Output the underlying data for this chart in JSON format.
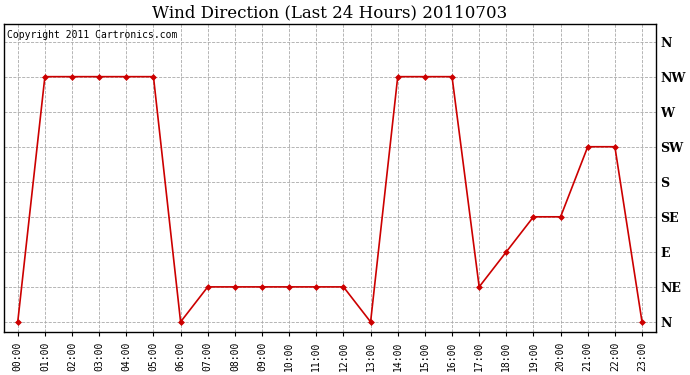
{
  "title": "Wind Direction (Last 24 Hours) 20110703",
  "copyright": "Copyright 2011 Cartronics.com",
  "x_labels": [
    "00:00",
    "01:00",
    "02:00",
    "03:00",
    "04:00",
    "05:00",
    "06:00",
    "07:00",
    "08:00",
    "09:00",
    "10:00",
    "11:00",
    "12:00",
    "13:00",
    "14:00",
    "15:00",
    "16:00",
    "17:00",
    "18:00",
    "19:00",
    "20:00",
    "21:00",
    "22:00",
    "23:00"
  ],
  "y_labels": [
    "N",
    "NE",
    "E",
    "SE",
    "S",
    "SW",
    "W",
    "NW",
    "N"
  ],
  "y_values": [
    0,
    1,
    2,
    3,
    4,
    5,
    6,
    7,
    8
  ],
  "data_hours": [
    0,
    1,
    2,
    3,
    4,
    5,
    6,
    7,
    8,
    9,
    10,
    11,
    12,
    13,
    14,
    15,
    16,
    17,
    18,
    19,
    20,
    21,
    22,
    23
  ],
  "data_dirs": [
    0,
    7,
    7,
    7,
    7,
    7,
    0,
    1,
    1,
    1,
    1,
    1,
    1,
    0,
    7,
    7,
    7,
    1,
    2,
    3,
    3,
    5,
    5,
    0
  ],
  "line_color": "#cc0000",
  "marker": "D",
  "marker_size": 3,
  "bg_color": "#ffffff",
  "plot_bg_color": "#ffffff",
  "grid_color": "#aaaaaa",
  "title_fontsize": 12,
  "copyright_fontsize": 7
}
